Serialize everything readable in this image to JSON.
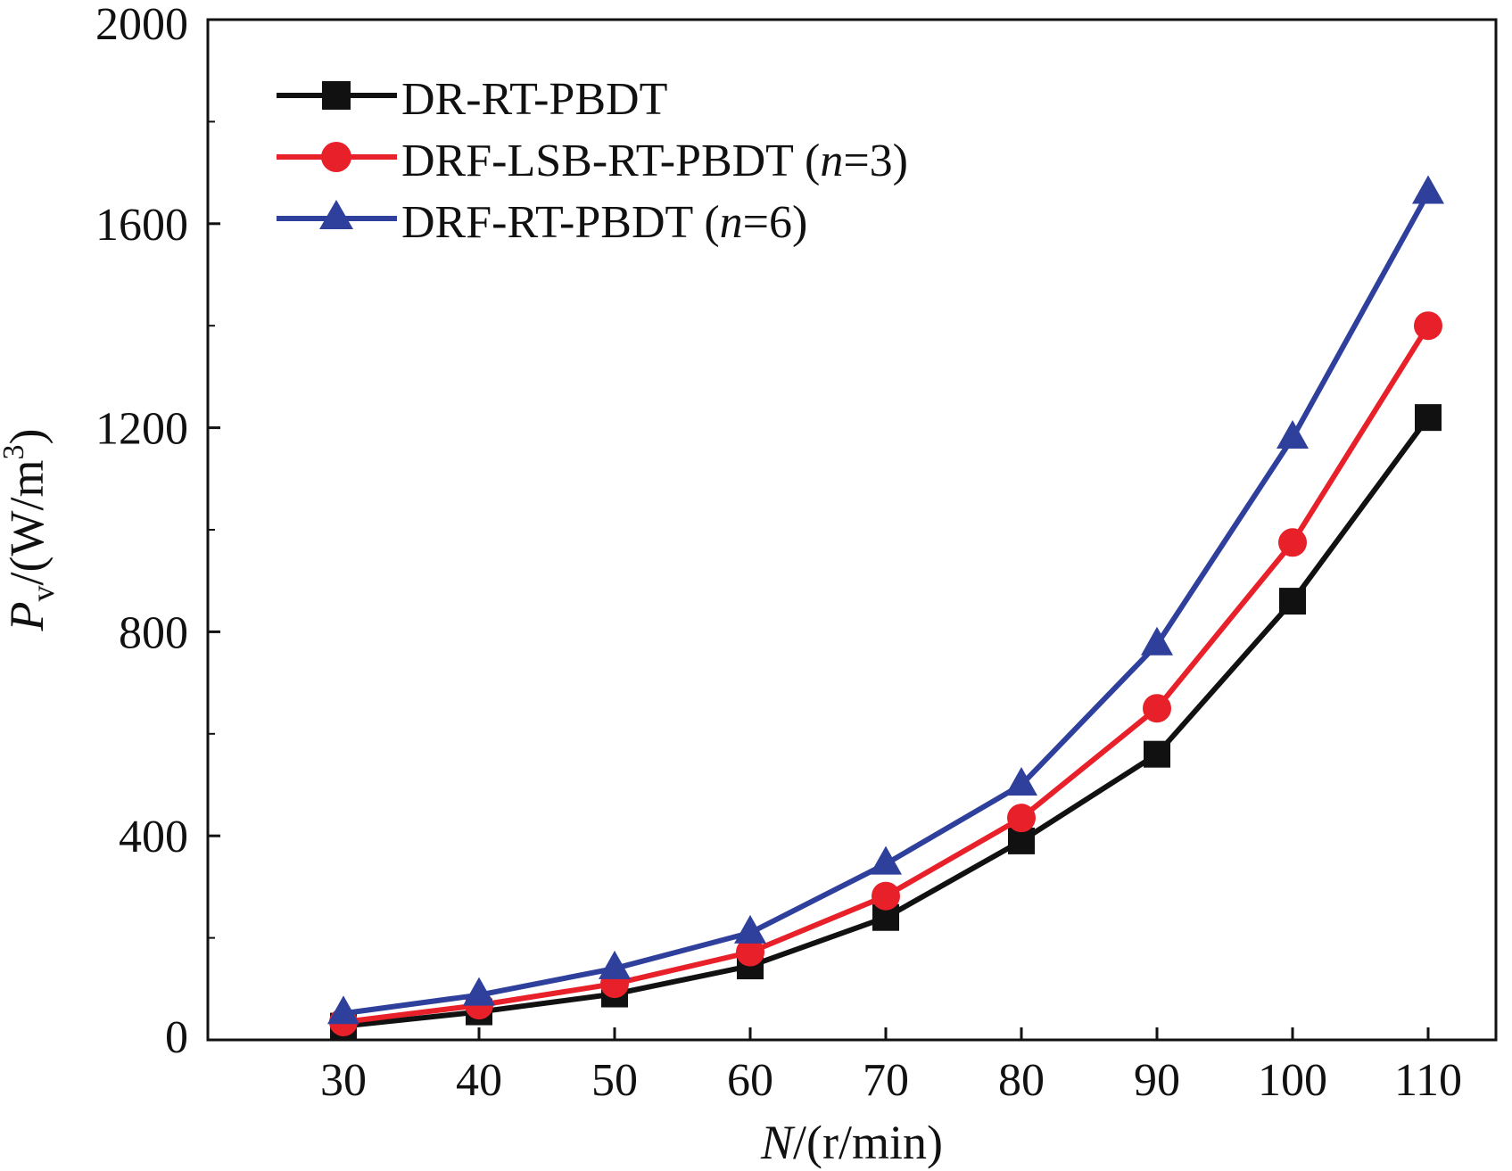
{
  "chart_data": {
    "type": "line",
    "title": "",
    "x": [
      30,
      40,
      50,
      60,
      70,
      80,
      90,
      100,
      110
    ],
    "xlim": [
      20,
      115
    ],
    "ylim": [
      0,
      2000
    ],
    "xticks": [
      "30",
      "40",
      "50",
      "60",
      "70",
      "80",
      "90",
      "100",
      "110"
    ],
    "yticks": [
      "0",
      "400",
      "800",
      "1200",
      "1600",
      "2000"
    ],
    "xlabel": {
      "var": "N",
      "unit": "/(r/min)"
    },
    "ylabel": {
      "var": "P",
      "sub": "v",
      "unit_pre": "/(W/m",
      "sup": "3",
      "unit_post": ")"
    },
    "grid": false,
    "legend_position": "top-left",
    "series": [
      {
        "name": "DR-RT-PBDT",
        "name_suffix": "",
        "param_var": "",
        "param_value": "",
        "marker": "square",
        "color": "#111111",
        "values": [
          27,
          55,
          90,
          145,
          240,
          390,
          560,
          860,
          1220
        ]
      },
      {
        "name": "DRF-LSB-RT-PBDT",
        "name_suffix": " (",
        "param_var": "n",
        "param_value": "=3)",
        "marker": "circle",
        "color": "#e8202a",
        "values": [
          35,
          68,
          110,
          172,
          282,
          435,
          650,
          975,
          1400
        ]
      },
      {
        "name": "DRF-RT-PBDT",
        "name_suffix": " (",
        "param_var": "n",
        "param_value": "=6)",
        "marker": "triangle",
        "color": "#2e3f9c",
        "values": [
          52,
          88,
          140,
          210,
          345,
          500,
          775,
          1180,
          1660
        ]
      }
    ]
  }
}
